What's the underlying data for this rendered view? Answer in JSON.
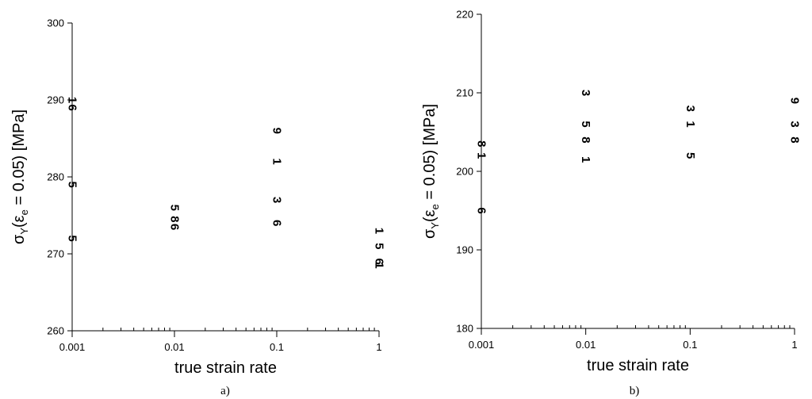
{
  "chart_data": [
    {
      "type": "scatter",
      "panel": "a)",
      "xlabel": "true strain rate",
      "ylabel_parts": {
        "sigma": "σ",
        "sigma_sub": "Y",
        "open": "(",
        "eps": "ε",
        "eps_sub": "e",
        "rest": " = 0.05) [MPa]"
      },
      "xscale": "log",
      "xlim": [
        0.001,
        1
      ],
      "ylim": [
        260,
        300
      ],
      "xticks": [
        0.001,
        0.01,
        0.1,
        1
      ],
      "xtick_labels": [
        "0.001",
        "0.01",
        "0.1",
        "1"
      ],
      "yticks": [
        260,
        270,
        280,
        290,
        300
      ],
      "ytick_labels": [
        "260",
        "270",
        "280",
        "290",
        "300"
      ],
      "grid": false,
      "points": [
        {
          "x": 0.001,
          "y": 290,
          "marker": "1"
        },
        {
          "x": 0.001,
          "y": 289,
          "marker": "6"
        },
        {
          "x": 0.001,
          "y": 279,
          "marker": "5"
        },
        {
          "x": 0.001,
          "y": 272,
          "marker": "5"
        },
        {
          "x": 0.01,
          "y": 276,
          "marker": "5"
        },
        {
          "x": 0.01,
          "y": 274.5,
          "marker": "8"
        },
        {
          "x": 0.01,
          "y": 273.5,
          "marker": "6"
        },
        {
          "x": 0.1,
          "y": 286,
          "marker": "9"
        },
        {
          "x": 0.1,
          "y": 282,
          "marker": "1"
        },
        {
          "x": 0.1,
          "y": 277,
          "marker": "3"
        },
        {
          "x": 0.1,
          "y": 274,
          "marker": "6"
        },
        {
          "x": 1,
          "y": 273,
          "marker": "1"
        },
        {
          "x": 1,
          "y": 271,
          "marker": "5"
        },
        {
          "x": 1,
          "y": 269,
          "marker": "6"
        },
        {
          "x": 1,
          "y": 268.5,
          "marker": "1"
        }
      ]
    },
    {
      "type": "scatter",
      "panel": "b)",
      "xlabel": "true strain rate",
      "ylabel_parts": {
        "sigma": "σ",
        "sigma_sub": "Y",
        "open": "(",
        "eps": "ε",
        "eps_sub": "e",
        "rest": " = 0.05) [MPa]"
      },
      "xscale": "log",
      "xlim": [
        0.001,
        1
      ],
      "ylim": [
        180,
        220
      ],
      "xticks": [
        0.001,
        0.01,
        0.1,
        1
      ],
      "xtick_labels": [
        "0.001",
        "0.01",
        "0.1",
        "1"
      ],
      "yticks": [
        180,
        190,
        200,
        210,
        220
      ],
      "ytick_labels": [
        "180",
        "190",
        "200",
        "210",
        "220"
      ],
      "grid": false,
      "points": [
        {
          "x": 0.001,
          "y": 203.5,
          "marker": "8"
        },
        {
          "x": 0.001,
          "y": 202,
          "marker": "1"
        },
        {
          "x": 0.001,
          "y": 195,
          "marker": "6"
        },
        {
          "x": 0.01,
          "y": 210,
          "marker": "3"
        },
        {
          "x": 0.01,
          "y": 206,
          "marker": "5"
        },
        {
          "x": 0.01,
          "y": 204,
          "marker": "8"
        },
        {
          "x": 0.01,
          "y": 201.5,
          "marker": "1"
        },
        {
          "x": 0.1,
          "y": 208,
          "marker": "3"
        },
        {
          "x": 0.1,
          "y": 206,
          "marker": "1"
        },
        {
          "x": 0.1,
          "y": 202,
          "marker": "5"
        },
        {
          "x": 1,
          "y": 209,
          "marker": "9"
        },
        {
          "x": 1,
          "y": 206,
          "marker": "3"
        },
        {
          "x": 1,
          "y": 204,
          "marker": "8"
        }
      ]
    }
  ]
}
